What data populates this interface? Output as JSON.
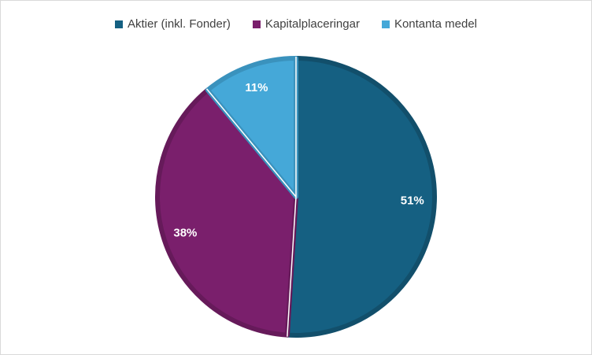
{
  "chart_data": {
    "type": "pie",
    "title": "",
    "legend_position": "top",
    "slices": [
      {
        "label": "Aktier (inkl. Fonder)",
        "value": 51,
        "display": "51%",
        "color": "#156082",
        "edge": "#124f6b"
      },
      {
        "label": "Kapitalplaceringar",
        "value": 38,
        "display": "38%",
        "color": "#7a1f6c",
        "edge": "#661a5a"
      },
      {
        "label": "Kontanta medel",
        "value": 11,
        "display": "11%",
        "color": "#45a8d8",
        "edge": "#3a92bd"
      }
    ]
  }
}
